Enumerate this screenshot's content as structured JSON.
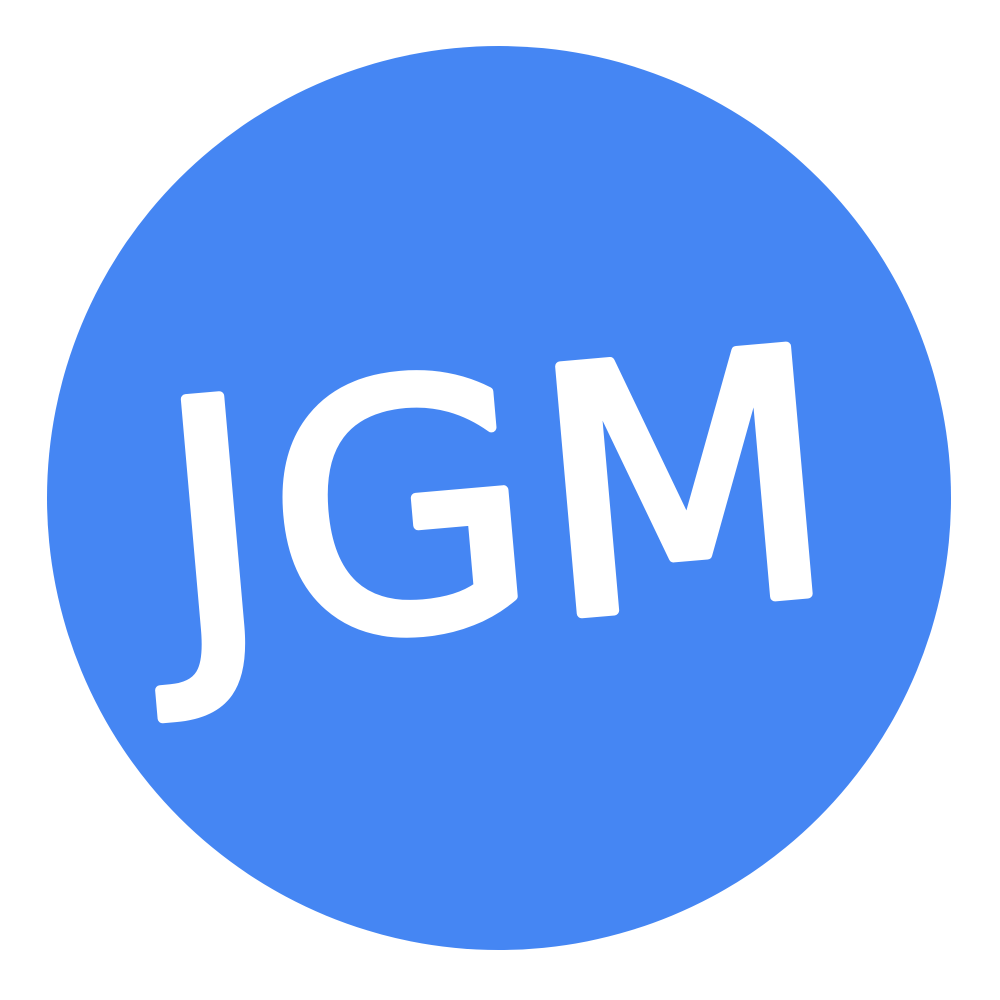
{
  "logo": {
    "text": "JGM"
  }
}
